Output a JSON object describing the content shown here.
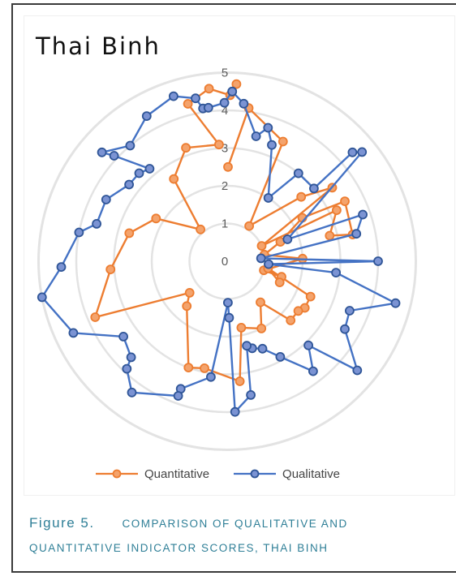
{
  "chart_data": {
    "type": "radar",
    "title": "Thai Binh",
    "r_ticks": [
      "0",
      "1",
      "2",
      "3",
      "4",
      "5"
    ],
    "rlim": [
      0,
      5
    ],
    "legend_position": "bottom",
    "series": [
      {
        "name": "Quantitative",
        "color": "#ed7d31",
        "points": [
          [
            2.5,
            0.5
          ],
          [
            4.1,
            8
          ],
          [
            3.5,
            25
          ],
          [
            1.1,
            32
          ],
          [
            2.6,
            49
          ],
          [
            3.4,
            55
          ],
          [
            1.0,
            66
          ],
          [
            3.2,
            65
          ],
          [
            2.8,
            76
          ],
          [
            3.4,
            78
          ],
          [
            3.5,
            63
          ],
          [
            2.3,
            60
          ],
          [
            1.5,
            70
          ],
          [
            1.0,
            80
          ],
          [
            2.0,
            88
          ],
          [
            1.0,
            104
          ],
          [
            1.5,
            106
          ],
          [
            1.5,
            112
          ],
          [
            1.1,
            100
          ],
          [
            2.4,
            113
          ],
          [
            2.4,
            121
          ],
          [
            2.3,
            125
          ],
          [
            2.3,
            133
          ],
          [
            1.4,
            141
          ],
          [
            2.0,
            153
          ],
          [
            1.8,
            168
          ],
          [
            3.2,
            174
          ],
          [
            2.9,
            192
          ],
          [
            3.0,
            200
          ],
          [
            1.6,
            222
          ],
          [
            1.3,
            230
          ],
          [
            3.8,
            247
          ],
          [
            3.1,
            266
          ],
          [
            2.7,
            286
          ],
          [
            2.2,
            301
          ],
          [
            1.1,
            320
          ],
          [
            2.6,
            327
          ],
          [
            3.2,
            340
          ],
          [
            3.1,
            356
          ],
          [
            4.3,
            346
          ],
          [
            4.6,
            354
          ],
          [
            4.4,
            1
          ],
          [
            4.7,
            3
          ]
        ]
      },
      {
        "name": "Qualitative",
        "color": "#4472c4",
        "points": [
          [
            4.5,
            1.7
          ],
          [
            4.2,
            6
          ],
          [
            3.4,
            13
          ],
          [
            3.7,
            17
          ],
          [
            3.3,
            21
          ],
          [
            2.0,
            33
          ],
          [
            3.0,
            39
          ],
          [
            3.0,
            50
          ],
          [
            4.4,
            49
          ],
          [
            4.6,
            51
          ],
          [
            1.7,
            70
          ],
          [
            3.8,
            71
          ],
          [
            3.5,
            78
          ],
          [
            0.9,
            85
          ],
          [
            4.0,
            90
          ],
          [
            1.1,
            94
          ],
          [
            2.9,
            96
          ],
          [
            4.6,
            104
          ],
          [
            3.5,
            112
          ],
          [
            3.6,
            120
          ],
          [
            4.5,
            130
          ],
          [
            3.1,
            136
          ],
          [
            3.7,
            142
          ],
          [
            2.9,
            151
          ],
          [
            2.5,
            158
          ],
          [
            2.4,
            164
          ],
          [
            2.3,
            167
          ],
          [
            3.6,
            170
          ],
          [
            4.0,
            177
          ],
          [
            1.5,
            178
          ],
          [
            1.1,
            179
          ],
          [
            3.1,
            188
          ],
          [
            3.6,
            200
          ],
          [
            3.8,
            200
          ],
          [
            4.3,
            216
          ],
          [
            3.9,
            223
          ],
          [
            3.6,
            225
          ],
          [
            3.4,
            234
          ],
          [
            4.5,
            245
          ],
          [
            5.0,
            259
          ],
          [
            4.4,
            268
          ],
          [
            4.0,
            281
          ],
          [
            3.6,
            286
          ],
          [
            3.6,
            297
          ],
          [
            3.3,
            308
          ],
          [
            3.3,
            315
          ],
          [
            3.2,
            320
          ],
          [
            4.1,
            313
          ],
          [
            4.4,
            311
          ],
          [
            4.0,
            320
          ],
          [
            4.4,
            331
          ],
          [
            4.6,
            342
          ],
          [
            4.4,
            349
          ],
          [
            4.1,
            351
          ],
          [
            4.1,
            353
          ],
          [
            4.2,
            359
          ],
          [
            4.5,
            1.7
          ]
        ]
      }
    ],
    "caption": {
      "prefix": "Figure 5.",
      "text": "Comparison of Qualitative and",
      "line2_first": "Quantitative",
      "line2_rest": "Indicator scores, Thai Binh"
    }
  }
}
